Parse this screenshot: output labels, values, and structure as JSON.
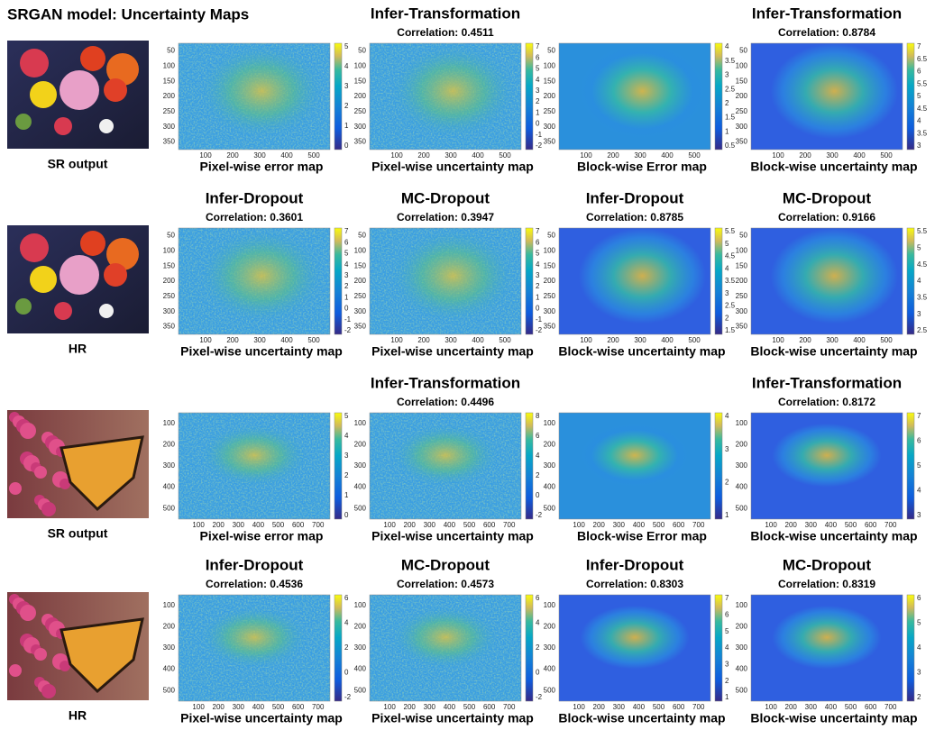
{
  "title": "SRGAN model: Uncertainty Maps",
  "rows": [
    {
      "image_label": "SR output",
      "panels": [
        {
          "caption": "Pixel-wise error map",
          "yticks": [
            "50",
            "100",
            "150",
            "200",
            "250",
            "300",
            "350"
          ],
          "xticks": [
            "100",
            "200",
            "300",
            "400",
            "500"
          ],
          "cbar_ticks": [
            "0",
            "1",
            "2",
            "3",
            "4",
            "5"
          ]
        },
        {
          "method": "Infer-Transformation",
          "correlation": "Correlation: 0.4511",
          "caption": "Pixel-wise uncertainty map",
          "yticks": [
            "50",
            "100",
            "150",
            "200",
            "250",
            "300",
            "350"
          ],
          "xticks": [
            "100",
            "200",
            "300",
            "400",
            "500"
          ],
          "cbar_ticks": [
            "-2",
            "-1",
            "0",
            "1",
            "2",
            "3",
            "4",
            "5",
            "6",
            "7"
          ]
        },
        {
          "caption": "Block-wise Error map",
          "yticks": [
            "50",
            "100",
            "150",
            "200",
            "250",
            "300",
            "350"
          ],
          "xticks": [
            "100",
            "200",
            "300",
            "400",
            "500"
          ],
          "cbar_ticks": [
            "0.5",
            "1",
            "1.5",
            "2",
            "2.5",
            "3",
            "3.5",
            "4"
          ]
        },
        {
          "method": "Infer-Transformation",
          "correlation": "Correlation: 0.8784",
          "caption": "Block-wise uncertainty map",
          "yticks": [
            "50",
            "100",
            "150",
            "200",
            "250",
            "300",
            "350"
          ],
          "xticks": [
            "100",
            "200",
            "300",
            "400",
            "500"
          ],
          "cbar_ticks": [
            "3",
            "3.5",
            "4",
            "4.5",
            "5",
            "5.5",
            "6",
            "6.5",
            "7"
          ]
        }
      ]
    },
    {
      "image_label": "HR",
      "panels": [
        {
          "method": "Infer-Dropout",
          "correlation": "Correlation: 0.3601",
          "caption": "Pixel-wise uncertainty map",
          "yticks": [
            "50",
            "100",
            "150",
            "200",
            "250",
            "300",
            "350"
          ],
          "xticks": [
            "100",
            "200",
            "300",
            "400",
            "500"
          ],
          "cbar_ticks": [
            "-2",
            "-1",
            "0",
            "1",
            "2",
            "3",
            "4",
            "5",
            "6",
            "7"
          ]
        },
        {
          "method": "MC-Dropout",
          "correlation": "Correlation: 0.3947",
          "caption": "Pixel-wise uncertainty map",
          "yticks": [
            "50",
            "100",
            "150",
            "200",
            "250",
            "300",
            "350"
          ],
          "xticks": [
            "100",
            "200",
            "300",
            "400",
            "500"
          ],
          "cbar_ticks": [
            "-2",
            "-1",
            "0",
            "1",
            "2",
            "3",
            "4",
            "5",
            "6",
            "7"
          ]
        },
        {
          "method": "Infer-Dropout",
          "correlation": "Correlation: 0.8785",
          "caption": "Block-wise uncertainty map",
          "yticks": [
            "50",
            "100",
            "150",
            "200",
            "250",
            "300",
            "350"
          ],
          "xticks": [
            "100",
            "200",
            "300",
            "400",
            "500"
          ],
          "cbar_ticks": [
            "1.5",
            "2",
            "2.5",
            "3",
            "3.5",
            "4",
            "4.5",
            "5",
            "5.5"
          ]
        },
        {
          "method": "MC-Dropout",
          "correlation": "Correlation: 0.9166",
          "caption": "Block-wise uncertainty map",
          "yticks": [
            "50",
            "100",
            "150",
            "200",
            "250",
            "300",
            "350"
          ],
          "xticks": [
            "100",
            "200",
            "300",
            "400",
            "500"
          ],
          "cbar_ticks": [
            "2.5",
            "3",
            "3.5",
            "4",
            "4.5",
            "5",
            "5.5"
          ]
        }
      ]
    },
    {
      "image_label": "SR output",
      "panels": [
        {
          "caption": "Pixel-wise error map",
          "yticks": [
            "100",
            "200",
            "300",
            "400",
            "500"
          ],
          "xticks": [
            "100",
            "200",
            "300",
            "400",
            "500",
            "600",
            "700"
          ],
          "cbar_ticks": [
            "0",
            "1",
            "2",
            "3",
            "4",
            "5"
          ]
        },
        {
          "method": "Infer-Transformation",
          "correlation": "Correlation: 0.4496",
          "caption": "Pixel-wise uncertainty map",
          "yticks": [
            "100",
            "200",
            "300",
            "400",
            "500"
          ],
          "xticks": [
            "100",
            "200",
            "300",
            "400",
            "500",
            "600",
            "700"
          ],
          "cbar_ticks": [
            "-2",
            "0",
            "2",
            "4",
            "6",
            "8"
          ]
        },
        {
          "caption": "Block-wise Error map",
          "yticks": [
            "100",
            "200",
            "300",
            "400",
            "500"
          ],
          "xticks": [
            "100",
            "200",
            "300",
            "400",
            "500",
            "600",
            "700"
          ],
          "cbar_ticks": [
            "1",
            "2",
            "3",
            "4"
          ]
        },
        {
          "method": "Infer-Transformation",
          "correlation": "Correlation: 0.8172",
          "caption": "Block-wise uncertainty map",
          "yticks": [
            "100",
            "200",
            "300",
            "400",
            "500"
          ],
          "xticks": [
            "100",
            "200",
            "300",
            "400",
            "500",
            "600",
            "700"
          ],
          "cbar_ticks": [
            "3",
            "4",
            "5",
            "6",
            "7"
          ]
        }
      ]
    },
    {
      "image_label": "HR",
      "panels": [
        {
          "method": "Infer-Dropout",
          "correlation": "Correlation: 0.4536",
          "caption": "Pixel-wise uncertainty map",
          "yticks": [
            "100",
            "200",
            "300",
            "400",
            "500"
          ],
          "xticks": [
            "100",
            "200",
            "300",
            "400",
            "500",
            "600",
            "700"
          ],
          "cbar_ticks": [
            "-2",
            "0",
            "2",
            "4",
            "6"
          ]
        },
        {
          "method": "MC-Dropout",
          "correlation": "Correlation: 0.4573",
          "caption": "Pixel-wise uncertainty map",
          "yticks": [
            "100",
            "200",
            "300",
            "400",
            "500"
          ],
          "xticks": [
            "100",
            "200",
            "300",
            "400",
            "500",
            "600",
            "700"
          ],
          "cbar_ticks": [
            "-2",
            "0",
            "2",
            "4",
            "6"
          ]
        },
        {
          "method": "Infer-Dropout",
          "correlation": "Correlation: 0.8303",
          "caption": "Block-wise uncertainty map",
          "yticks": [
            "100",
            "200",
            "300",
            "400",
            "500"
          ],
          "xticks": [
            "100",
            "200",
            "300",
            "400",
            "500",
            "600",
            "700"
          ],
          "cbar_ticks": [
            "1",
            "2",
            "3",
            "4",
            "5",
            "6",
            "7"
          ]
        },
        {
          "method": "MC-Dropout",
          "correlation": "Correlation: 0.8319",
          "caption": "Block-wise uncertainty map",
          "yticks": [
            "100",
            "200",
            "300",
            "400",
            "500"
          ],
          "xticks": [
            "100",
            "200",
            "300",
            "400",
            "500",
            "600",
            "700"
          ],
          "cbar_ticks": [
            "2",
            "3",
            "4",
            "5",
            "6"
          ]
        }
      ]
    }
  ]
}
